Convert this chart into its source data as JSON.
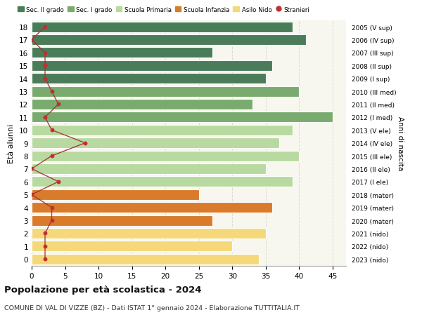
{
  "ages": [
    18,
    17,
    16,
    15,
    14,
    13,
    12,
    11,
    10,
    9,
    8,
    7,
    6,
    5,
    4,
    3,
    2,
    1,
    0
  ],
  "right_labels": [
    "2005 (V sup)",
    "2006 (IV sup)",
    "2007 (III sup)",
    "2008 (II sup)",
    "2009 (I sup)",
    "2010 (III med)",
    "2011 (II med)",
    "2012 (I med)",
    "2013 (V ele)",
    "2014 (IV ele)",
    "2015 (III ele)",
    "2016 (II ele)",
    "2017 (I ele)",
    "2018 (mater)",
    "2019 (mater)",
    "2020 (mater)",
    "2021 (nido)",
    "2022 (nido)",
    "2023 (nido)"
  ],
  "bar_values": [
    39,
    41,
    27,
    36,
    35,
    40,
    33,
    45,
    39,
    37,
    40,
    35,
    39,
    25,
    36,
    27,
    35,
    30,
    34
  ],
  "bar_colors": [
    "#4a7c59",
    "#4a7c59",
    "#4a7c59",
    "#4a7c59",
    "#4a7c59",
    "#7aab6e",
    "#7aab6e",
    "#7aab6e",
    "#b8d9a0",
    "#b8d9a0",
    "#b8d9a0",
    "#b8d9a0",
    "#b8d9a0",
    "#d97b2b",
    "#d97b2b",
    "#d97b2b",
    "#f5d87a",
    "#f5d87a",
    "#f5d87a"
  ],
  "stranieri_values": [
    2,
    0,
    2,
    2,
    2,
    3,
    4,
    2,
    3,
    8,
    3,
    0,
    4,
    0,
    3,
    3,
    2,
    2,
    2
  ],
  "legend_labels": [
    "Sec. II grado",
    "Sec. I grado",
    "Scuola Primaria",
    "Scuola Infanzia",
    "Asilo Nido",
    "Stranieri"
  ],
  "legend_colors": [
    "#4a7c59",
    "#7aab6e",
    "#b8d9a0",
    "#d97b2b",
    "#f5d87a",
    "#c0392b"
  ],
  "ylabel": "Età alunni",
  "right_ylabel": "Anni di nascita",
  "title": "Popolazione per età scolastica - 2024",
  "subtitle": "COMUNE DI VAL DI VIZZE (BZ) - Dati ISTAT 1° gennaio 2024 - Elaborazione TUTTITALIA.IT",
  "xlim": [
    0,
    47
  ],
  "background_color": "#ffffff",
  "plot_bg": "#f7f7ef",
  "grid_color": "#ddddcc",
  "stranieri_line_color": "#a03030",
  "stranieri_dot_color": "#c03030"
}
